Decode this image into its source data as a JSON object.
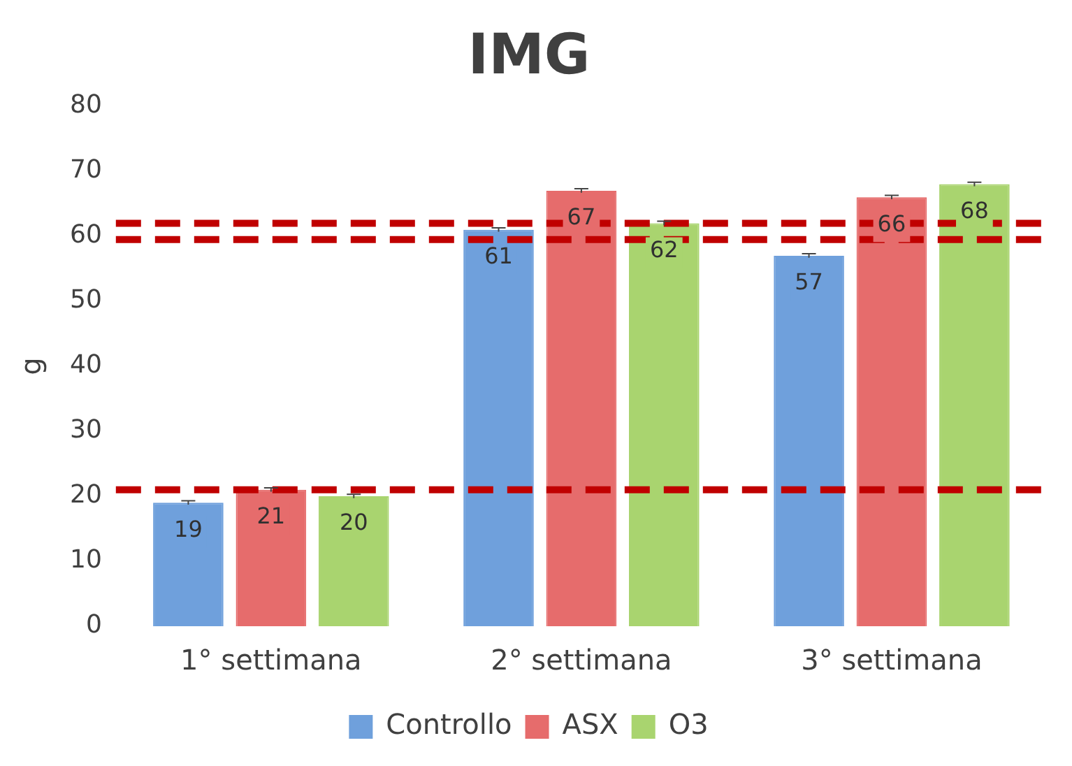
{
  "chart_data": {
    "type": "bar",
    "title": "IMG",
    "ylabel": "g",
    "categories": [
      "1° settimana",
      "2° settimana",
      "3° settimana"
    ],
    "series": [
      {
        "name": "Controllo",
        "color": "#6fa0dc",
        "values": [
          19,
          61,
          57
        ],
        "errors": [
          0.3,
          0.3,
          0.3
        ]
      },
      {
        "name": "ASX",
        "color": "#e66c6c",
        "values": [
          21,
          67,
          66
        ],
        "errors": [
          0.3,
          0.3,
          0.3
        ]
      },
      {
        "name": "O3",
        "color": "#a9d46f",
        "values": [
          20,
          62,
          68
        ],
        "errors": [
          0.3,
          0.3,
          0.3
        ]
      }
    ],
    "ylim": [
      0,
      80
    ],
    "yticks": [
      0,
      10,
      20,
      30,
      40,
      50,
      60,
      70,
      80
    ],
    "grid": false,
    "legend": "bottom",
    "data_labels": true,
    "ref_lines": [
      {
        "axis": "y",
        "value": 21,
        "color": "#c00000",
        "line_style": "dashed"
      },
      {
        "axis": "y",
        "value": 59.5,
        "color": "#c00000",
        "line_style": "dashed"
      },
      {
        "axis": "y",
        "value": 62,
        "color": "#c00000",
        "line_style": "dashed"
      }
    ]
  }
}
